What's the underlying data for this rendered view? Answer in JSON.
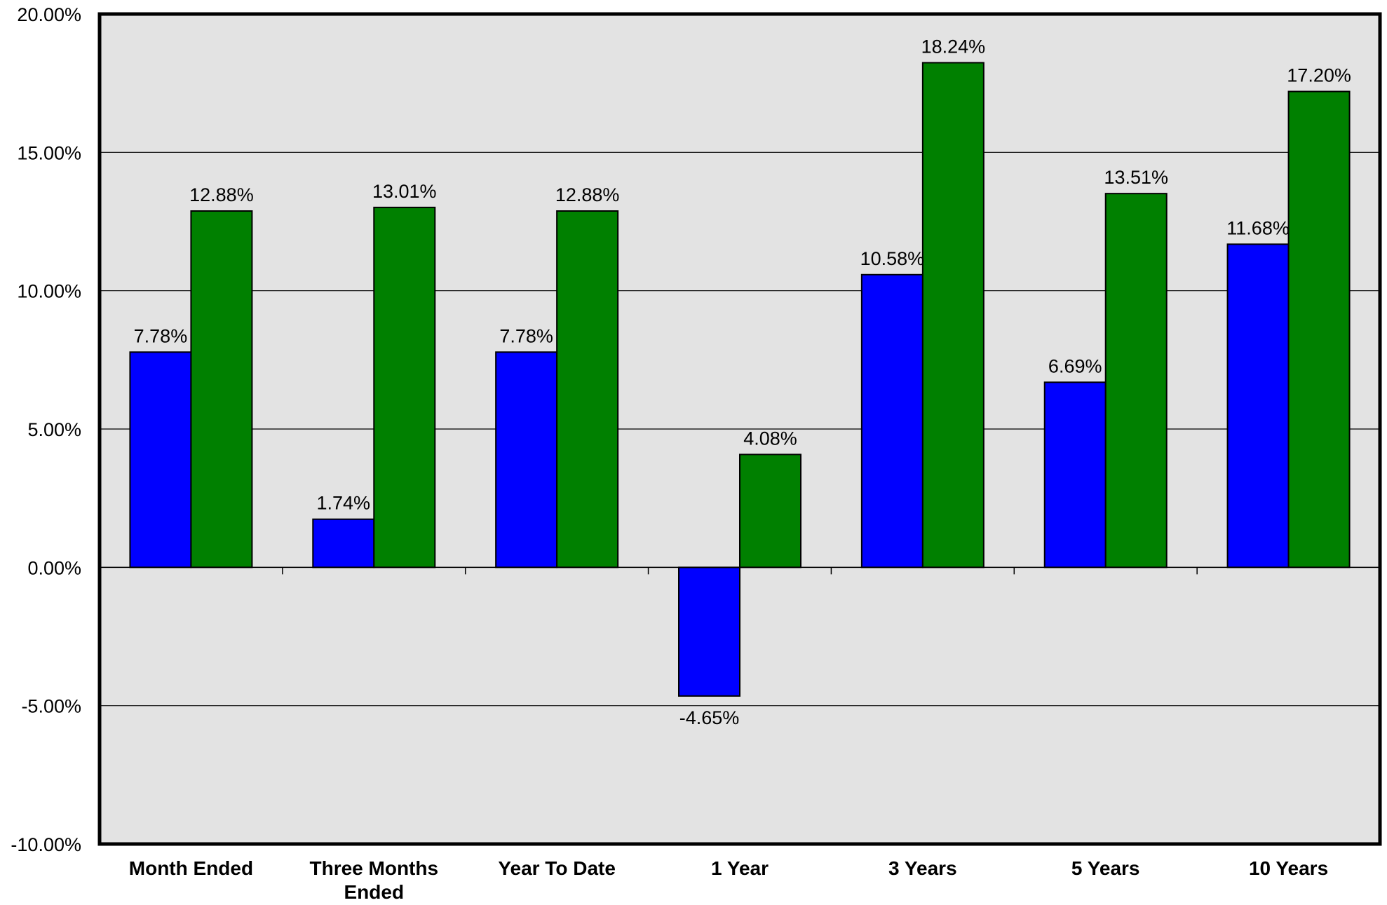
{
  "chart_data": {
    "type": "bar",
    "categories": [
      [
        "Month Ended"
      ],
      [
        "Three Months",
        "Ended"
      ],
      [
        "Year To Date"
      ],
      [
        "1 Year"
      ],
      [
        "3 Years"
      ],
      [
        "5 Years"
      ],
      [
        "10 Years"
      ]
    ],
    "series": [
      {
        "color": "#0000ff",
        "values": [
          7.78,
          1.74,
          7.78,
          -4.65,
          10.58,
          6.69,
          11.68
        ],
        "labels": [
          "7.78%",
          "1.74%",
          "7.78%",
          "-4.65%",
          "10.58%",
          "6.69%",
          "11.68%"
        ]
      },
      {
        "color": "#008000",
        "values": [
          12.88,
          13.01,
          12.88,
          4.08,
          18.24,
          13.51,
          17.2
        ],
        "labels": [
          "12.88%",
          "13.01%",
          "12.88%",
          "4.08%",
          "18.24%",
          "13.51%",
          "17.20%"
        ]
      }
    ],
    "yticks": [
      {
        "value": 20,
        "label": "20.00%"
      },
      {
        "value": 15,
        "label": "15.00%"
      },
      {
        "value": 10,
        "label": "10.00%"
      },
      {
        "value": 5,
        "label": "5.00%"
      },
      {
        "value": 0,
        "label": "0.00%"
      },
      {
        "value": -5,
        "label": "-5.00%"
      },
      {
        "value": -10,
        "label": "-10.00%"
      }
    ],
    "ylim": [
      -10,
      20
    ],
    "grid": true,
    "legend": "none",
    "plot_background": "#e3e3e3",
    "title": "",
    "xlabel": "",
    "ylabel": ""
  }
}
